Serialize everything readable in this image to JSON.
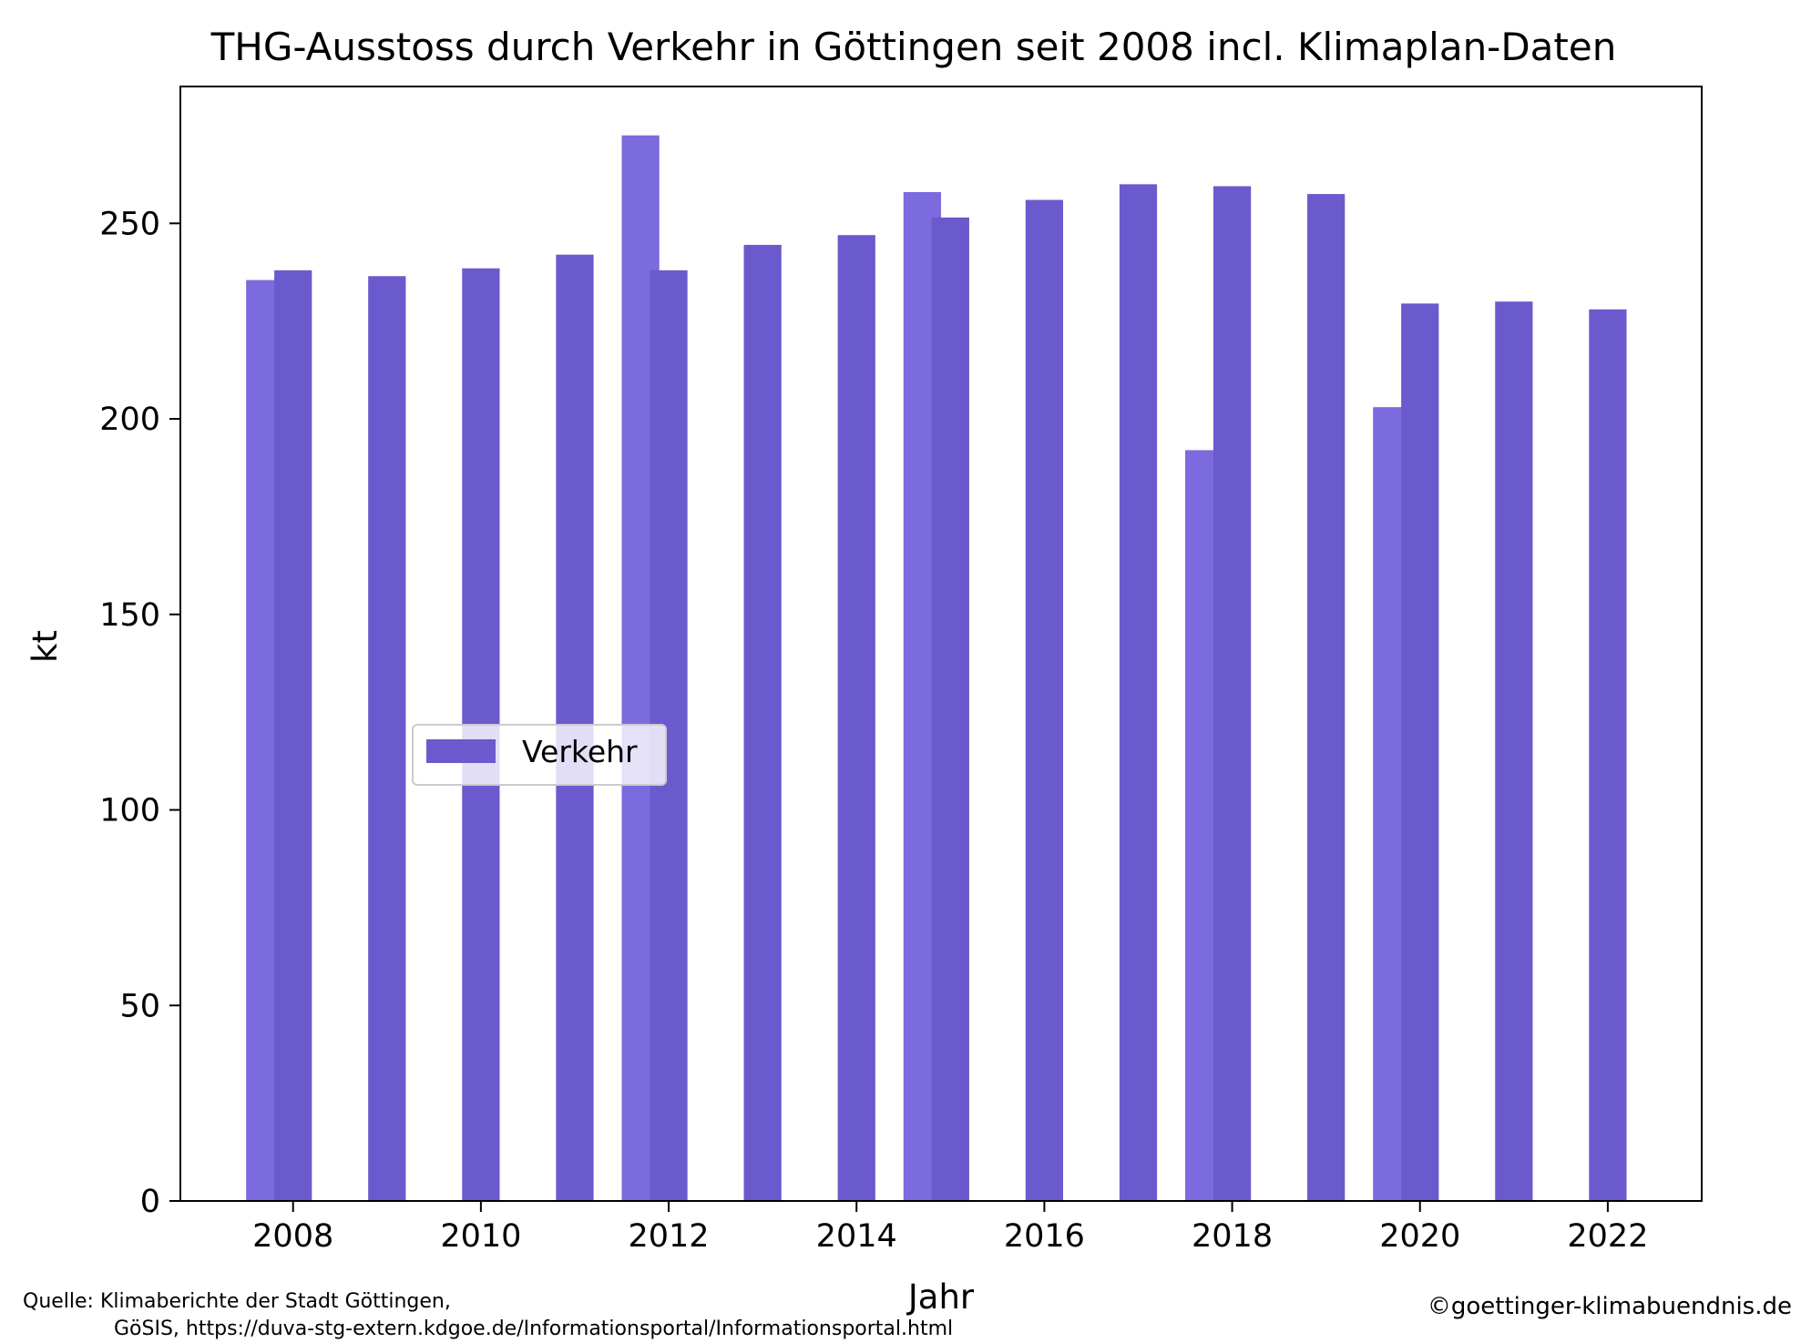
{
  "chart_data": {
    "type": "bar",
    "title": "THG-Ausstoss durch Verkehr in Göttingen seit 2008 incl. Klimaplan-Daten",
    "xlabel": "Jahr",
    "ylabel": "kt",
    "xlim": [
      2006.8,
      2023.0
    ],
    "ylim": [
      0,
      285
    ],
    "xticks": [
      "2008",
      "2010",
      "2012",
      "2014",
      "2016",
      "2018",
      "2020",
      "2022"
    ],
    "yticks": [
      "0",
      "50",
      "100",
      "150",
      "200",
      "250"
    ],
    "legend": {
      "label": "Verkehr",
      "placement": "center-left"
    },
    "colors": {
      "primary": "#6a5acd",
      "secondary": "#7b6bde"
    },
    "series": [
      {
        "name": "Verkehr",
        "x": [
          2008,
          2009,
          2010,
          2011,
          2012,
          2013,
          2014,
          2015,
          2016,
          2017,
          2018,
          2019,
          2020,
          2021,
          2022
        ],
        "values": [
          238,
          236.5,
          238.5,
          242,
          238,
          244.5,
          247,
          251.5,
          256,
          260,
          259.5,
          257.5,
          229.5,
          230,
          228
        ]
      },
      {
        "x": [
          2007.7,
          2011.7,
          2014.7,
          2017.7,
          2019.7
        ],
        "values": [
          235.5,
          272.5,
          258,
          192,
          203
        ]
      }
    ]
  },
  "footer": {
    "source_line1": "Quelle: Klimaberichte der Stadt Göttingen,",
    "source_line2": "GöSIS, https://duva-stg-extern.kdgoe.de/Informationsportal/Informationsportal.html",
    "copyright": "©goettinger-klimabuendnis.de"
  }
}
